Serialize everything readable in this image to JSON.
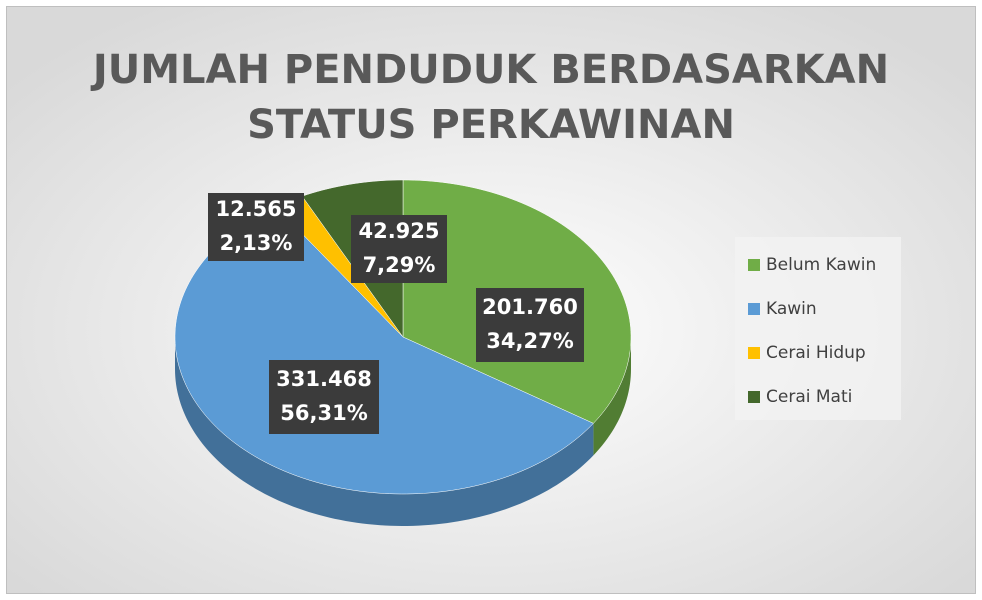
{
  "chart_data": {
    "type": "pie3d",
    "title": [
      "JUMLAH PENDUDUK BERDASARKAN",
      "STATUS PERKAWINAN"
    ],
    "categories": [
      "Belum Kawin",
      "Kawin",
      "Cerai Hidup",
      "Cerai Mati"
    ],
    "values": [
      201760,
      331468,
      12565,
      42925
    ],
    "value_labels": [
      "201.760",
      "331.468",
      "12.565",
      "42.925"
    ],
    "percentages": [
      34.27,
      56.31,
      2.13,
      7.29
    ],
    "percentage_labels": [
      "34,27%",
      "56,31%",
      "2,13%",
      "7,29%"
    ],
    "colors": [
      "#70ad47",
      "#5b9bd5",
      "#ffc000",
      "#44682c"
    ],
    "legend": "right"
  }
}
